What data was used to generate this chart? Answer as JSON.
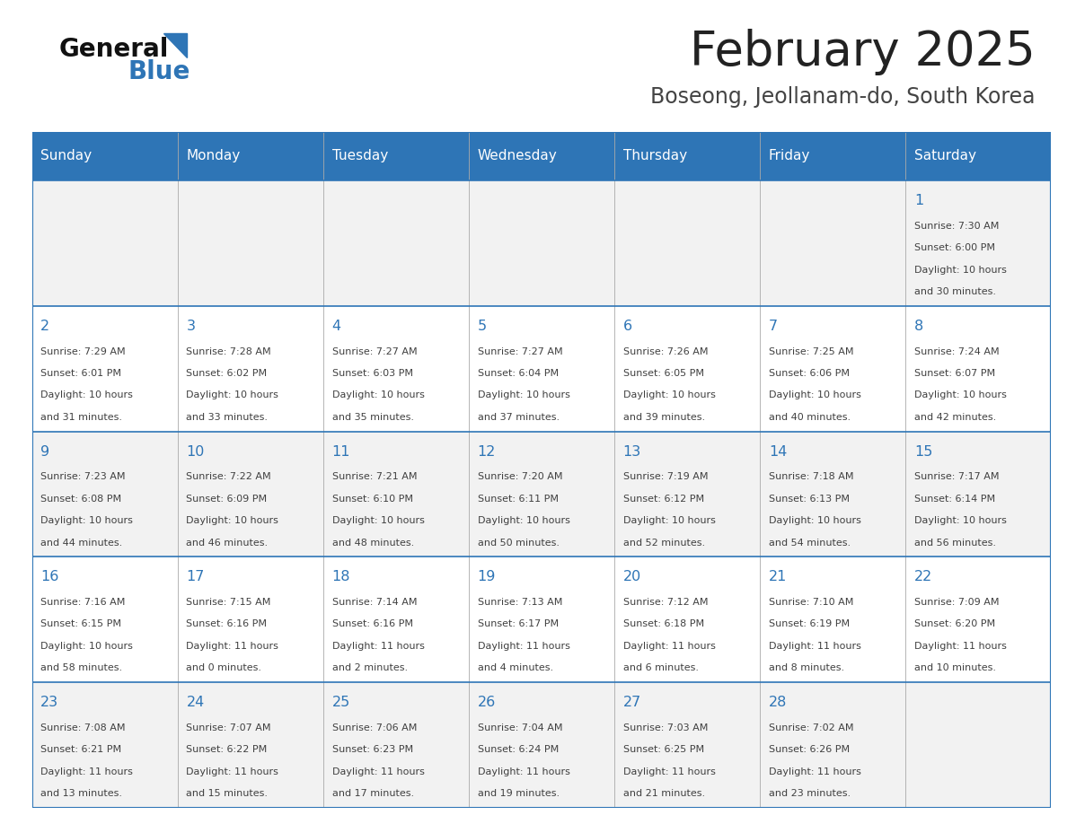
{
  "title": "February 2025",
  "subtitle": "Boseong, Jeollanam-do, South Korea",
  "header_color": "#2E75B6",
  "header_text_color": "#FFFFFF",
  "day_names": [
    "Sunday",
    "Monday",
    "Tuesday",
    "Wednesday",
    "Thursday",
    "Friday",
    "Saturday"
  ],
  "bg_color": "#FFFFFF",
  "cell_bg_even": "#F2F2F2",
  "cell_bg_odd": "#FFFFFF",
  "border_color": "#2E75B6",
  "inner_border_color": "#AAAAAA",
  "day_num_color": "#2E75B6",
  "text_color": "#404040",
  "title_color": "#222222",
  "subtitle_color": "#444444",
  "logo_general_color": "#111111",
  "logo_blue_color": "#2E75B6",
  "logo_triangle_color": "#2E75B6",
  "days": [
    {
      "day": 1,
      "col": 6,
      "row": 0,
      "sunrise": "7:30 AM",
      "sunset": "6:00 PM",
      "dl_hours": "10",
      "dl_minutes": "30"
    },
    {
      "day": 2,
      "col": 0,
      "row": 1,
      "sunrise": "7:29 AM",
      "sunset": "6:01 PM",
      "dl_hours": "10",
      "dl_minutes": "31"
    },
    {
      "day": 3,
      "col": 1,
      "row": 1,
      "sunrise": "7:28 AM",
      "sunset": "6:02 PM",
      "dl_hours": "10",
      "dl_minutes": "33"
    },
    {
      "day": 4,
      "col": 2,
      "row": 1,
      "sunrise": "7:27 AM",
      "sunset": "6:03 PM",
      "dl_hours": "10",
      "dl_minutes": "35"
    },
    {
      "day": 5,
      "col": 3,
      "row": 1,
      "sunrise": "7:27 AM",
      "sunset": "6:04 PM",
      "dl_hours": "10",
      "dl_minutes": "37"
    },
    {
      "day": 6,
      "col": 4,
      "row": 1,
      "sunrise": "7:26 AM",
      "sunset": "6:05 PM",
      "dl_hours": "10",
      "dl_minutes": "39"
    },
    {
      "day": 7,
      "col": 5,
      "row": 1,
      "sunrise": "7:25 AM",
      "sunset": "6:06 PM",
      "dl_hours": "10",
      "dl_minutes": "40"
    },
    {
      "day": 8,
      "col": 6,
      "row": 1,
      "sunrise": "7:24 AM",
      "sunset": "6:07 PM",
      "dl_hours": "10",
      "dl_minutes": "42"
    },
    {
      "day": 9,
      "col": 0,
      "row": 2,
      "sunrise": "7:23 AM",
      "sunset": "6:08 PM",
      "dl_hours": "10",
      "dl_minutes": "44"
    },
    {
      "day": 10,
      "col": 1,
      "row": 2,
      "sunrise": "7:22 AM",
      "sunset": "6:09 PM",
      "dl_hours": "10",
      "dl_minutes": "46"
    },
    {
      "day": 11,
      "col": 2,
      "row": 2,
      "sunrise": "7:21 AM",
      "sunset": "6:10 PM",
      "dl_hours": "10",
      "dl_minutes": "48"
    },
    {
      "day": 12,
      "col": 3,
      "row": 2,
      "sunrise": "7:20 AM",
      "sunset": "6:11 PM",
      "dl_hours": "10",
      "dl_minutes": "50"
    },
    {
      "day": 13,
      "col": 4,
      "row": 2,
      "sunrise": "7:19 AM",
      "sunset": "6:12 PM",
      "dl_hours": "10",
      "dl_minutes": "52"
    },
    {
      "day": 14,
      "col": 5,
      "row": 2,
      "sunrise": "7:18 AM",
      "sunset": "6:13 PM",
      "dl_hours": "10",
      "dl_minutes": "54"
    },
    {
      "day": 15,
      "col": 6,
      "row": 2,
      "sunrise": "7:17 AM",
      "sunset": "6:14 PM",
      "dl_hours": "10",
      "dl_minutes": "56"
    },
    {
      "day": 16,
      "col": 0,
      "row": 3,
      "sunrise": "7:16 AM",
      "sunset": "6:15 PM",
      "dl_hours": "10",
      "dl_minutes": "58"
    },
    {
      "day": 17,
      "col": 1,
      "row": 3,
      "sunrise": "7:15 AM",
      "sunset": "6:16 PM",
      "dl_hours": "11",
      "dl_minutes": "0"
    },
    {
      "day": 18,
      "col": 2,
      "row": 3,
      "sunrise": "7:14 AM",
      "sunset": "6:16 PM",
      "dl_hours": "11",
      "dl_minutes": "2"
    },
    {
      "day": 19,
      "col": 3,
      "row": 3,
      "sunrise": "7:13 AM",
      "sunset": "6:17 PM",
      "dl_hours": "11",
      "dl_minutes": "4"
    },
    {
      "day": 20,
      "col": 4,
      "row": 3,
      "sunrise": "7:12 AM",
      "sunset": "6:18 PM",
      "dl_hours": "11",
      "dl_minutes": "6"
    },
    {
      "day": 21,
      "col": 5,
      "row": 3,
      "sunrise": "7:10 AM",
      "sunset": "6:19 PM",
      "dl_hours": "11",
      "dl_minutes": "8"
    },
    {
      "day": 22,
      "col": 6,
      "row": 3,
      "sunrise": "7:09 AM",
      "sunset": "6:20 PM",
      "dl_hours": "11",
      "dl_minutes": "10"
    },
    {
      "day": 23,
      "col": 0,
      "row": 4,
      "sunrise": "7:08 AM",
      "sunset": "6:21 PM",
      "dl_hours": "11",
      "dl_minutes": "13"
    },
    {
      "day": 24,
      "col": 1,
      "row": 4,
      "sunrise": "7:07 AM",
      "sunset": "6:22 PM",
      "dl_hours": "11",
      "dl_minutes": "15"
    },
    {
      "day": 25,
      "col": 2,
      "row": 4,
      "sunrise": "7:06 AM",
      "sunset": "6:23 PM",
      "dl_hours": "11",
      "dl_minutes": "17"
    },
    {
      "day": 26,
      "col": 3,
      "row": 4,
      "sunrise": "7:04 AM",
      "sunset": "6:24 PM",
      "dl_hours": "11",
      "dl_minutes": "19"
    },
    {
      "day": 27,
      "col": 4,
      "row": 4,
      "sunrise": "7:03 AM",
      "sunset": "6:25 PM",
      "dl_hours": "11",
      "dl_minutes": "21"
    },
    {
      "day": 28,
      "col": 5,
      "row": 4,
      "sunrise": "7:02 AM",
      "sunset": "6:26 PM",
      "dl_hours": "11",
      "dl_minutes": "23"
    }
  ]
}
